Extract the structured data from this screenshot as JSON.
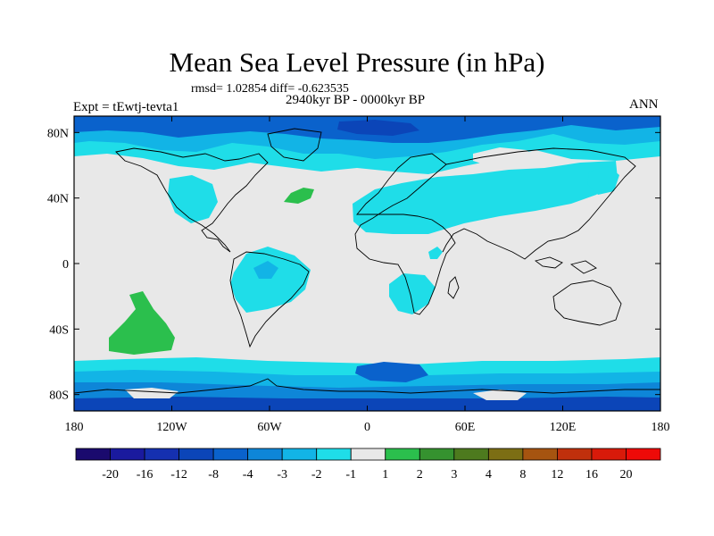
{
  "chart_data": {
    "type": "heatmap",
    "title": "Mean Sea Level Pressure (in hPa)",
    "subtitle_left": "rmsd= 1.02854 diff= -0.623535",
    "subtitle_center": "2940kyr BP - 0000kyr BP",
    "label_left": "Expt = tEwtj-tevta1",
    "label_right": "ANN",
    "x_range": [
      -180,
      180
    ],
    "y_range": [
      -90,
      90
    ],
    "x_ticks": [
      {
        "value": -180,
        "label": "180"
      },
      {
        "value": -120,
        "label": "120W"
      },
      {
        "value": -60,
        "label": "60W"
      },
      {
        "value": 0,
        "label": "0"
      },
      {
        "value": 60,
        "label": "60E"
      },
      {
        "value": 120,
        "label": "120E"
      },
      {
        "value": 180,
        "label": "180"
      }
    ],
    "y_ticks": [
      {
        "value": 80,
        "label": "80N"
      },
      {
        "value": 40,
        "label": "40N"
      },
      {
        "value": 0,
        "label": "0"
      },
      {
        "value": -40,
        "label": "40S"
      },
      {
        "value": -80,
        "label": "80S"
      }
    ],
    "colorbar": {
      "levels": [
        "-20",
        "-16",
        "-12",
        "-8",
        "-4",
        "-3",
        "-2",
        "-1",
        "1",
        "2",
        "3",
        "4",
        "8",
        "12",
        "16",
        "20"
      ],
      "colors": [
        "#1a0a6e",
        "#1a1a9e",
        "#1530b0",
        "#0b45b8",
        "#0a62cc",
        "#0e86d8",
        "#12b4e6",
        "#1fdde8",
        "#e8e8e8",
        "#2bbf4d",
        "#35922f",
        "#4d7a1e",
        "#7c6e14",
        "#a65410",
        "#c0300c",
        "#d81a0a",
        "#ee0a08"
      ]
    },
    "regions": [
      {
        "name": "arctic",
        "level_min": -8,
        "level_max": -1
      },
      {
        "name": "north-pacific",
        "level_min": -2,
        "level_max": -1
      },
      {
        "name": "north-atlantic-high",
        "level_min": 1,
        "level_max": 2
      },
      {
        "name": "eurasia",
        "level_min": -2,
        "level_max": -1
      },
      {
        "name": "south-america",
        "level_min": -3,
        "level_max": -1
      },
      {
        "name": "southern-africa",
        "level_min": -2,
        "level_max": -1
      },
      {
        "name": "south-pacific-high",
        "level_min": 1,
        "level_max": 2
      },
      {
        "name": "southern-ocean",
        "level_min": -8,
        "level_max": -1
      }
    ]
  }
}
